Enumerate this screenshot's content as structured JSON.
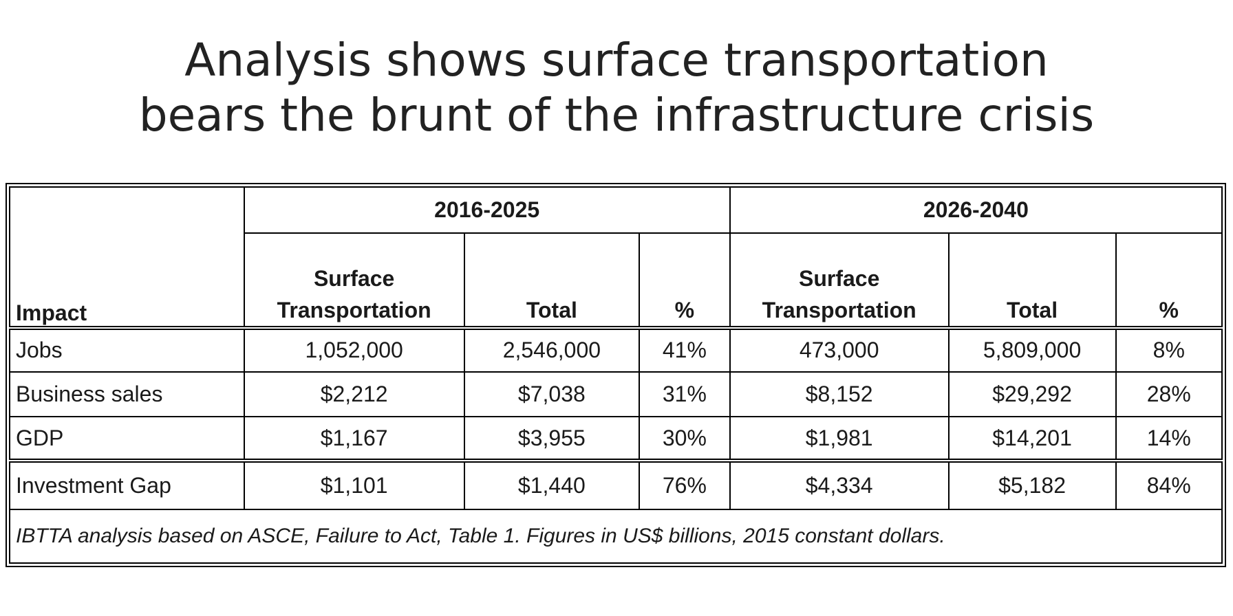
{
  "title": {
    "line1": "Analysis shows surface transportation",
    "line2": "bears the brunt of the infrastructure crisis"
  },
  "table": {
    "impact_header": "Impact",
    "periods": [
      "2016-2025",
      "2026-2040"
    ],
    "sub_headers": {
      "surface_line1": "Surface",
      "surface_line2": "Transportation",
      "total": "Total",
      "percent": "%"
    },
    "rows": [
      {
        "label": "Jobs",
        "values": [
          "1,052,000",
          "2,546,000",
          "41%",
          "473,000",
          "5,809,000",
          "8%"
        ]
      },
      {
        "label": "Business sales",
        "values": [
          "$2,212",
          "$7,038",
          "31%",
          "$8,152",
          "$29,292",
          "28%"
        ]
      },
      {
        "label": "GDP",
        "values": [
          "$1,167",
          "$3,955",
          "30%",
          "$1,981",
          "$14,201",
          "14%"
        ]
      },
      {
        "label": "Investment Gap",
        "values": [
          "$1,101",
          "$1,440",
          "76%",
          "$4,334",
          "$5,182",
          "84%"
        ]
      }
    ],
    "note": "IBTTA analysis based on ASCE, Failure to Act, Table 1. Figures in US$ billions, 2015 constant dollars."
  }
}
